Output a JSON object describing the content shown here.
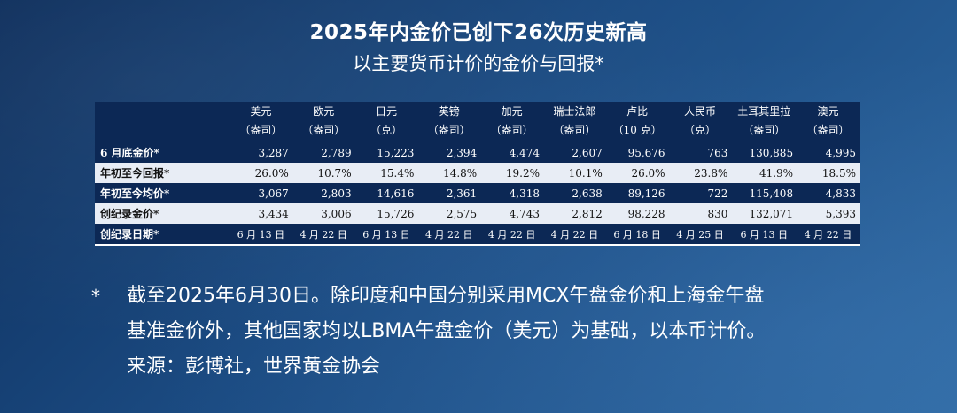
{
  "title": "2025年内金价已创下26次历史新高",
  "subtitle": "以主要货币计价的金价与回报*",
  "table": {
    "columns": [
      {
        "name": "美元",
        "unit": "（盎司）"
      },
      {
        "name": "欧元",
        "unit": "（盎司）"
      },
      {
        "name": "日元",
        "unit": "（克）"
      },
      {
        "name": "英镑",
        "unit": "（盎司）"
      },
      {
        "name": "加元",
        "unit": "（盎司）"
      },
      {
        "name": "瑞士法郎",
        "unit": "（盎司）"
      },
      {
        "name": "卢比",
        "unit": "（10 克）"
      },
      {
        "name": "人民币",
        "unit": "（克）"
      },
      {
        "name": "土耳其里拉",
        "unit": "（盎司）"
      },
      {
        "name": "澳元",
        "unit": "（盎司）"
      }
    ],
    "rows": [
      {
        "label": "6 月底金价*",
        "style": "dark",
        "values": [
          "3,287",
          "2,789",
          "15,223",
          "2,394",
          "4,474",
          "2,607",
          "95,676",
          "763",
          "130,885",
          "4,995"
        ]
      },
      {
        "label": "年初至今回报*",
        "style": "light",
        "values": [
          "26.0%",
          "10.7%",
          "15.4%",
          "14.8%",
          "19.2%",
          "10.1%",
          "26.0%",
          "23.8%",
          "41.9%",
          "18.5%"
        ]
      },
      {
        "label": "年初至今均价*",
        "style": "dark",
        "values": [
          "3,067",
          "2,803",
          "14,616",
          "2,361",
          "4,318",
          "2,638",
          "89,126",
          "722",
          "115,408",
          "4,833"
        ]
      },
      {
        "label": "创纪录金价*",
        "style": "light",
        "values": [
          "3,434",
          "3,006",
          "15,726",
          "2,575",
          "4,743",
          "2,812",
          "98,228",
          "830",
          "132,071",
          "5,393"
        ]
      },
      {
        "label": "创纪录日期*",
        "style": "dark",
        "values": [
          "6 月 13 日",
          "4 月 22 日",
          "6 月 13 日",
          "4 月 22 日",
          "4 月 22 日",
          "4 月 22 日",
          "6 月 18 日",
          "4 月 25 日",
          "6 月 13 日",
          "4 月 22 日"
        ]
      }
    ]
  },
  "footnote": {
    "marker": "*",
    "line1": "截至2025年6月30日。除印度和中国分别采用MCX午盘金价和上海金午盘",
    "line2": "基准金价外，其他国家均以LBMA午盘金价（美元）为基础，以本币计价。",
    "source": "来源：彭博社，世界黄金协会"
  },
  "colors": {
    "table_dark": "#0c2855",
    "table_light": "#e8edf5",
    "background_top": "#0d2e5c",
    "background_bottom": "#2f6aa3"
  }
}
